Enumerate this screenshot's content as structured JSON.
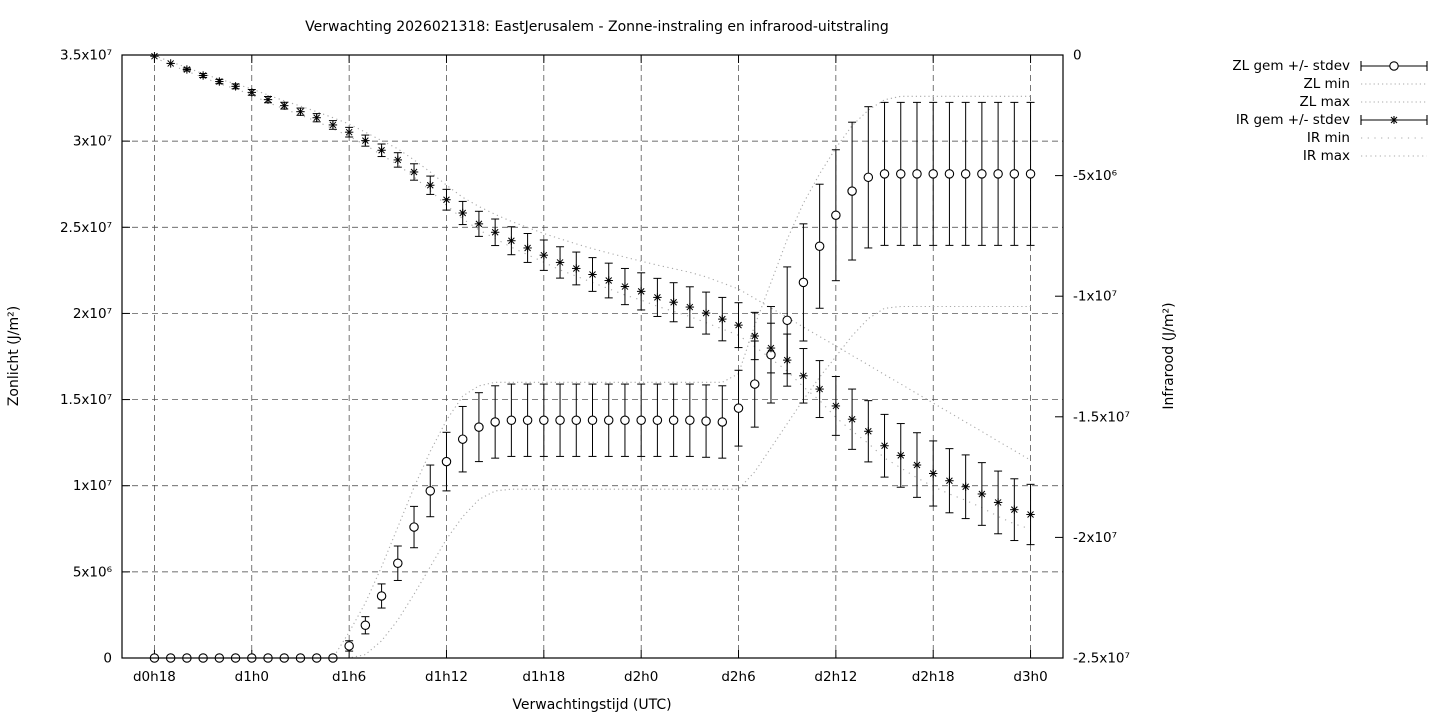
{
  "title": "Verwachting 2026021318: EastJerusalem - Zonne-instraling en infrarood-uitstraling",
  "x_label": "Verwachtingstijd (UTC)",
  "y_left_label": "Zonlicht (J/m²)",
  "y_right_label": "Infrarood (J/m²)",
  "colors": {
    "series": "#000000",
    "minmax_dotted": "#a9a9a9",
    "grid": "#3c3c3c",
    "background": "#ffffff"
  },
  "legend": {
    "items": [
      {
        "label": "ZL gem +/- stdev",
        "sample": "errorbar-circle"
      },
      {
        "label": "ZL min",
        "sample": "dotted-fine"
      },
      {
        "label": "ZL max",
        "sample": "dotted-fine"
      },
      {
        "label": "IR gem +/- stdev",
        "sample": "errorbar-star"
      },
      {
        "label": "IR min",
        "sample": "dotted-sparse"
      },
      {
        "label": "IR max",
        "sample": "dotted-med"
      }
    ]
  },
  "chart_data": {
    "type": "line",
    "subtype": "errorbars-with-minmax-envelopes",
    "grid": true,
    "legend_position": "outside-right-top",
    "x_axis": {
      "label": "Verwachtingstijd (UTC)",
      "unit": "forecast hour (d = day, h = hour UTC)",
      "start_hour": 18,
      "step_hours": 1,
      "n_points": 55,
      "range_hours": [
        16,
        74
      ],
      "ticks": [
        {
          "hour": 18,
          "label": "d0h18"
        },
        {
          "hour": 24,
          "label": "d1h0"
        },
        {
          "hour": 30,
          "label": "d1h6"
        },
        {
          "hour": 36,
          "label": "d1h12"
        },
        {
          "hour": 42,
          "label": "d1h18"
        },
        {
          "hour": 48,
          "label": "d2h0"
        },
        {
          "hour": 54,
          "label": "d2h6"
        },
        {
          "hour": 60,
          "label": "d2h12"
        },
        {
          "hour": 66,
          "label": "d2h18"
        },
        {
          "hour": 72,
          "label": "d3h0"
        }
      ]
    },
    "value_scale_note": "all series values in units of 1e6 J/m^2",
    "y_left": {
      "label": "Zonlicht (J/m²)",
      "min": 0,
      "max": 35,
      "ticks": [
        {
          "v": 0,
          "label": "0"
        },
        {
          "v": 5,
          "label": "5x10⁶"
        },
        {
          "v": 10,
          "label": "1x10⁷"
        },
        {
          "v": 15,
          "label": "1.5x10⁷"
        },
        {
          "v": 20,
          "label": "2x10⁷"
        },
        {
          "v": 25,
          "label": "2.5x10⁷"
        },
        {
          "v": 30,
          "label": "3x10⁷"
        },
        {
          "v": 35,
          "label": "3.5x10⁷"
        }
      ]
    },
    "y_right": {
      "label": "Infrarood (J/m²)",
      "min": -25,
      "max": 0,
      "ticks": [
        {
          "v": 0,
          "label": "0"
        },
        {
          "v": -5,
          "label": "-5x10⁶"
        },
        {
          "v": -10,
          "label": "-1x10⁷"
        },
        {
          "v": -15,
          "label": "-1.5x10⁷"
        },
        {
          "v": -20,
          "label": "-2x10⁷"
        },
        {
          "v": -25,
          "label": "-2.5x10⁷"
        }
      ]
    },
    "zl": {
      "name": "ZL (Zonlicht)",
      "axis": "left",
      "marker": "circle",
      "mean": [
        0,
        0,
        0,
        0,
        0,
        0,
        0,
        0,
        0,
        0,
        0,
        0,
        0.7,
        1.9,
        3.6,
        5.5,
        7.6,
        9.7,
        11.4,
        12.7,
        13.4,
        13.7,
        13.8,
        13.8,
        13.8,
        13.8,
        13.8,
        13.8,
        13.8,
        13.8,
        13.8,
        13.8,
        13.8,
        13.8,
        13.75,
        13.7,
        14.5,
        15.9,
        17.6,
        19.6,
        21.8,
        23.9,
        25.7,
        27.1,
        27.9,
        28.1,
        28.1,
        28.1,
        28.1,
        28.1,
        28.1,
        28.1,
        28.1,
        28.1,
        28.1
      ],
      "stdev": [
        0,
        0,
        0,
        0,
        0,
        0,
        0,
        0,
        0,
        0,
        0,
        0,
        0.3,
        0.5,
        0.7,
        1.0,
        1.2,
        1.5,
        1.7,
        1.9,
        2.0,
        2.1,
        2.1,
        2.1,
        2.1,
        2.1,
        2.1,
        2.1,
        2.1,
        2.1,
        2.1,
        2.1,
        2.1,
        2.1,
        2.1,
        2.1,
        2.2,
        2.5,
        2.8,
        3.1,
        3.4,
        3.6,
        3.8,
        4.0,
        4.1,
        4.15,
        4.15,
        4.15,
        4.15,
        4.15,
        4.15,
        4.15,
        4.15,
        4.15,
        4.15
      ],
      "min": [
        0,
        0,
        0,
        0,
        0,
        0,
        0,
        0,
        0,
        0,
        0,
        0,
        0,
        0.2,
        1.0,
        2.2,
        3.7,
        5.3,
        6.9,
        8.2,
        9.2,
        9.7,
        9.8,
        9.8,
        9.8,
        9.8,
        9.8,
        9.8,
        9.8,
        9.8,
        9.8,
        9.8,
        9.8,
        9.8,
        9.8,
        9.8,
        9.8,
        10.8,
        12.2,
        13.6,
        15.0,
        16.3,
        17.5,
        18.7,
        19.7,
        20.3,
        20.4,
        20.4,
        20.4,
        20.4,
        20.4,
        20.4,
        20.4,
        20.4,
        20.4
      ],
      "max": [
        0,
        0,
        0,
        0,
        0,
        0,
        0,
        0,
        0,
        0,
        0,
        0,
        1.5,
        3.2,
        5.3,
        7.6,
        9.9,
        12.0,
        13.8,
        15.2,
        15.8,
        16.0,
        16.0,
        16.0,
        16.0,
        16.0,
        16.0,
        16.0,
        16.0,
        16.0,
        16.0,
        16.0,
        16.0,
        16.0,
        16.0,
        16.0,
        16.5,
        19.3,
        21.8,
        24.3,
        26.4,
        28.1,
        29.6,
        30.9,
        31.8,
        32.4,
        32.6,
        32.6,
        32.6,
        32.6,
        32.6,
        32.6,
        32.6,
        32.6,
        32.6
      ]
    },
    "ir": {
      "name": "IR (Infrarood)",
      "axis": "right",
      "marker": "asterisk",
      "mean": [
        -0.05,
        -0.35,
        -0.6,
        -0.85,
        -1.1,
        -1.3,
        -1.55,
        -1.85,
        -2.1,
        -2.35,
        -2.6,
        -2.9,
        -3.2,
        -3.55,
        -3.95,
        -4.35,
        -4.85,
        -5.4,
        -6.0,
        -6.55,
        -7.0,
        -7.35,
        -7.7,
        -8.0,
        -8.3,
        -8.6,
        -8.85,
        -9.1,
        -9.35,
        -9.6,
        -9.8,
        -10.05,
        -10.25,
        -10.45,
        -10.7,
        -10.95,
        -11.2,
        -11.65,
        -12.15,
        -12.65,
        -13.3,
        -13.85,
        -14.55,
        -15.1,
        -15.6,
        -16.2,
        -16.6,
        -17.0,
        -17.35,
        -17.65,
        -17.9,
        -18.2,
        -18.55,
        -18.85,
        -19.05
      ],
      "stdev": [
        0.03,
        0.05,
        0.06,
        0.08,
        0.09,
        0.1,
        0.12,
        0.13,
        0.14,
        0.15,
        0.17,
        0.18,
        0.2,
        0.23,
        0.26,
        0.3,
        0.34,
        0.38,
        0.43,
        0.48,
        0.52,
        0.55,
        0.58,
        0.6,
        0.63,
        0.65,
        0.68,
        0.7,
        0.72,
        0.75,
        0.77,
        0.79,
        0.81,
        0.84,
        0.87,
        0.9,
        0.93,
        0.98,
        1.03,
        1.08,
        1.13,
        1.18,
        1.22,
        1.25,
        1.27,
        1.3,
        1.32,
        1.34,
        1.35,
        1.33,
        1.32,
        1.3,
        1.3,
        1.28,
        1.25
      ],
      "min": [
        -0.1,
        -0.41,
        -0.67,
        -0.93,
        -1.19,
        -1.4,
        -1.66,
        -1.97,
        -2.23,
        -2.49,
        -2.75,
        -3.06,
        -3.37,
        -3.73,
        -4.14,
        -4.55,
        -5.06,
        -5.62,
        -6.23,
        -6.79,
        -7.25,
        -7.61,
        -7.97,
        -8.28,
        -8.59,
        -8.91,
        -9.17,
        -9.43,
        -9.69,
        -9.95,
        -10.16,
        -10.42,
        -10.63,
        -10.84,
        -11.1,
        -11.36,
        -11.62,
        -12.08,
        -12.59,
        -13.1,
        -13.76,
        -14.32,
        -15.03,
        -15.59,
        -16.1,
        -16.71,
        -17.12,
        -17.53,
        -17.89,
        -18.2,
        -18.46,
        -18.77,
        -19.13,
        -19.44,
        -19.65
      ],
      "max": [
        -0.02,
        -0.28,
        -0.52,
        -0.78,
        -1.0,
        -1.2,
        -1.41,
        -1.66,
        -1.9,
        -2.12,
        -2.35,
        -2.6,
        -2.86,
        -3.2,
        -3.55,
        -3.89,
        -4.35,
        -4.85,
        -5.4,
        -5.9,
        -6.28,
        -6.61,
        -6.9,
        -7.15,
        -7.4,
        -7.62,
        -7.83,
        -8.03,
        -8.21,
        -8.38,
        -8.55,
        -8.71,
        -8.86,
        -9.01,
        -9.2,
        -9.45,
        -9.7,
        -10.09,
        -10.49,
        -10.88,
        -11.28,
        -11.67,
        -12.06,
        -12.46,
        -12.85,
        -13.25,
        -13.64,
        -14.04,
        -14.43,
        -14.82,
        -15.22,
        -15.61,
        -16.01,
        -16.4,
        -16.8
      ]
    }
  }
}
